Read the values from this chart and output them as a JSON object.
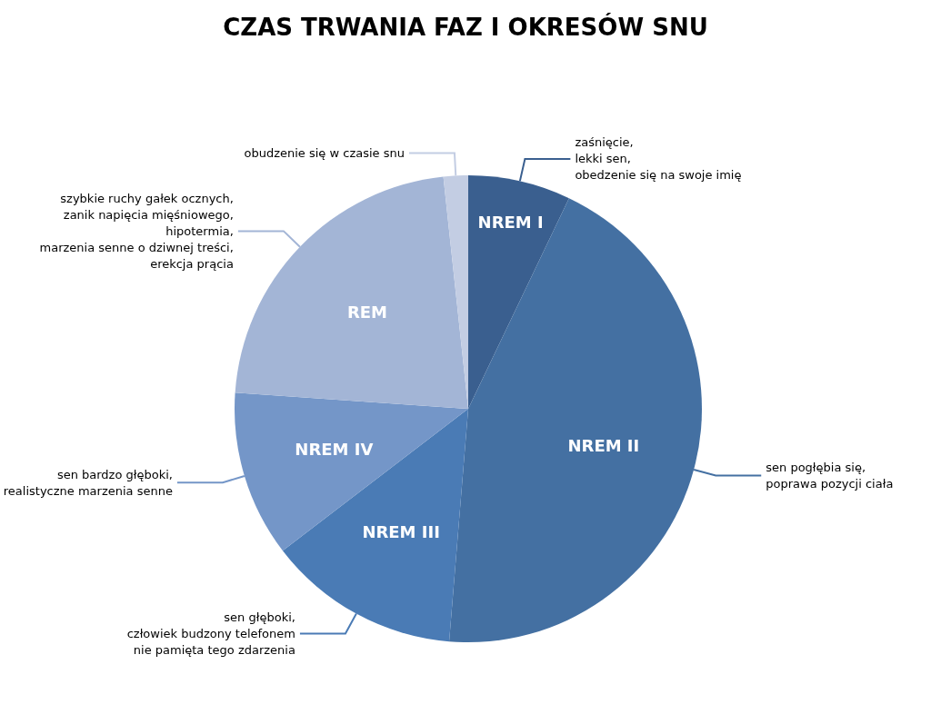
{
  "chart_data": {
    "type": "pie",
    "title": "CZAS TRWANIA FAZ I OKRESÓW SNU",
    "categories": [
      "NREM I",
      "NREM II",
      "NREM III",
      "NREM IV",
      "REM",
      null
    ],
    "values": [
      7.1,
      44.2,
      13.3,
      11.5,
      22.2,
      1.7
    ],
    "colors": [
      "#3a5f8f",
      "#4470a2",
      "#4a7bb5",
      "#7496c8",
      "#a3b5d6",
      "#c3cde3"
    ],
    "annotations": [
      "zaśnięcie,\nlekki sen,\nobedzenie się na swoje imię",
      "sen pogłębia się,\npoprawa pozycji ciała",
      "sen głęboki,\nczłowiek budzony telefonem\nnie pamięta tego zdarzenia",
      "sen bardzo głęboki,\nrealistyczne marzenia senne",
      "szybkie ruchy gałek ocznych,\nzanik napięcia mięśniowego,\nhipotermia,\nmarzenia senne o dziwnej treści,\nerekcja prącia",
      "obudzenie się w czasie snu"
    ],
    "legend": false
  }
}
